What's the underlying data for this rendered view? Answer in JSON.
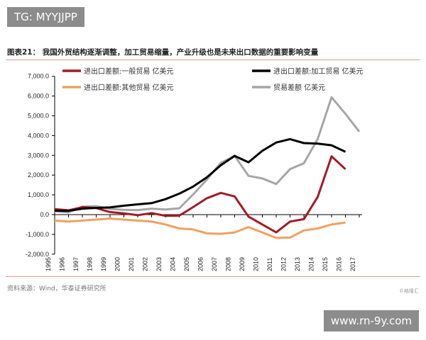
{
  "overlay": {
    "tag": "TG: MYYJJPP",
    "site": "www.rn-9y.com"
  },
  "title": "图表21： 我国外贸结构逐渐调整，加工贸易缩量，产业升级也是未来出口数据的重要影响变量",
  "source": "资料来源：Wind，华泰证券研究所",
  "watermark": "©格隆汇",
  "chart_data": {
    "type": "line",
    "title": "",
    "ylim": [
      -2000,
      7000
    ],
    "yticks": [
      "7,000.0",
      "6,000.0",
      "5,000.0",
      "4,000.0",
      "3,000.0",
      "2,000.0",
      "1,000.0",
      "0.0",
      "-1,000.0",
      "-2,000.0"
    ],
    "ytick_values": [
      7000,
      6000,
      5000,
      4000,
      3000,
      2000,
      1000,
      0,
      -1000,
      -2000
    ],
    "grid": false,
    "legend": "top",
    "categories": [
      "1995",
      "1996",
      "1997",
      "1998",
      "1999",
      "2000",
      "2001",
      "2002",
      "2003",
      "2004",
      "2005",
      "2006",
      "2007",
      "2008",
      "2009",
      "2010",
      "2011",
      "2012",
      "2013",
      "2014",
      "2015",
      "2016",
      "2017"
    ],
    "series": [
      {
        "name": "进出口差额:一般贸易 亿美元",
        "color": "#a31a24",
        "values": [
          280,
          220,
          380,
          330,
          130,
          60,
          -30,
          80,
          -60,
          -50,
          380,
          830,
          1100,
          920,
          -100,
          -500,
          -900,
          -350,
          -230,
          900,
          2950,
          2300,
          null
        ]
      },
      {
        "name": "进出口差额:加工贸易 亿美元",
        "color": "#000000",
        "values": [
          200,
          190,
          300,
          340,
          370,
          450,
          520,
          580,
          780,
          1060,
          1420,
          1890,
          2500,
          2970,
          2650,
          3230,
          3650,
          3820,
          3620,
          3590,
          3510,
          3180,
          null
        ]
      },
      {
        "name": "进出口差额:其他贸易 亿美元",
        "color": "#f0a060",
        "values": [
          -300,
          -350,
          -300,
          -250,
          -200,
          -250,
          -300,
          -350,
          -500,
          -700,
          -750,
          -950,
          -970,
          -900,
          -630,
          -900,
          -1180,
          -1160,
          -800,
          -700,
          -500,
          -400,
          null
        ]
      },
      {
        "name": "贸易差额 亿美元",
        "color": "#a6a6a6",
        "values": [
          170,
          120,
          400,
          430,
          290,
          240,
          230,
          300,
          260,
          320,
          1020,
          1780,
          2620,
          2980,
          1960,
          1830,
          1550,
          2300,
          2600,
          3830,
          5940,
          5100,
          4200
        ]
      }
    ]
  }
}
